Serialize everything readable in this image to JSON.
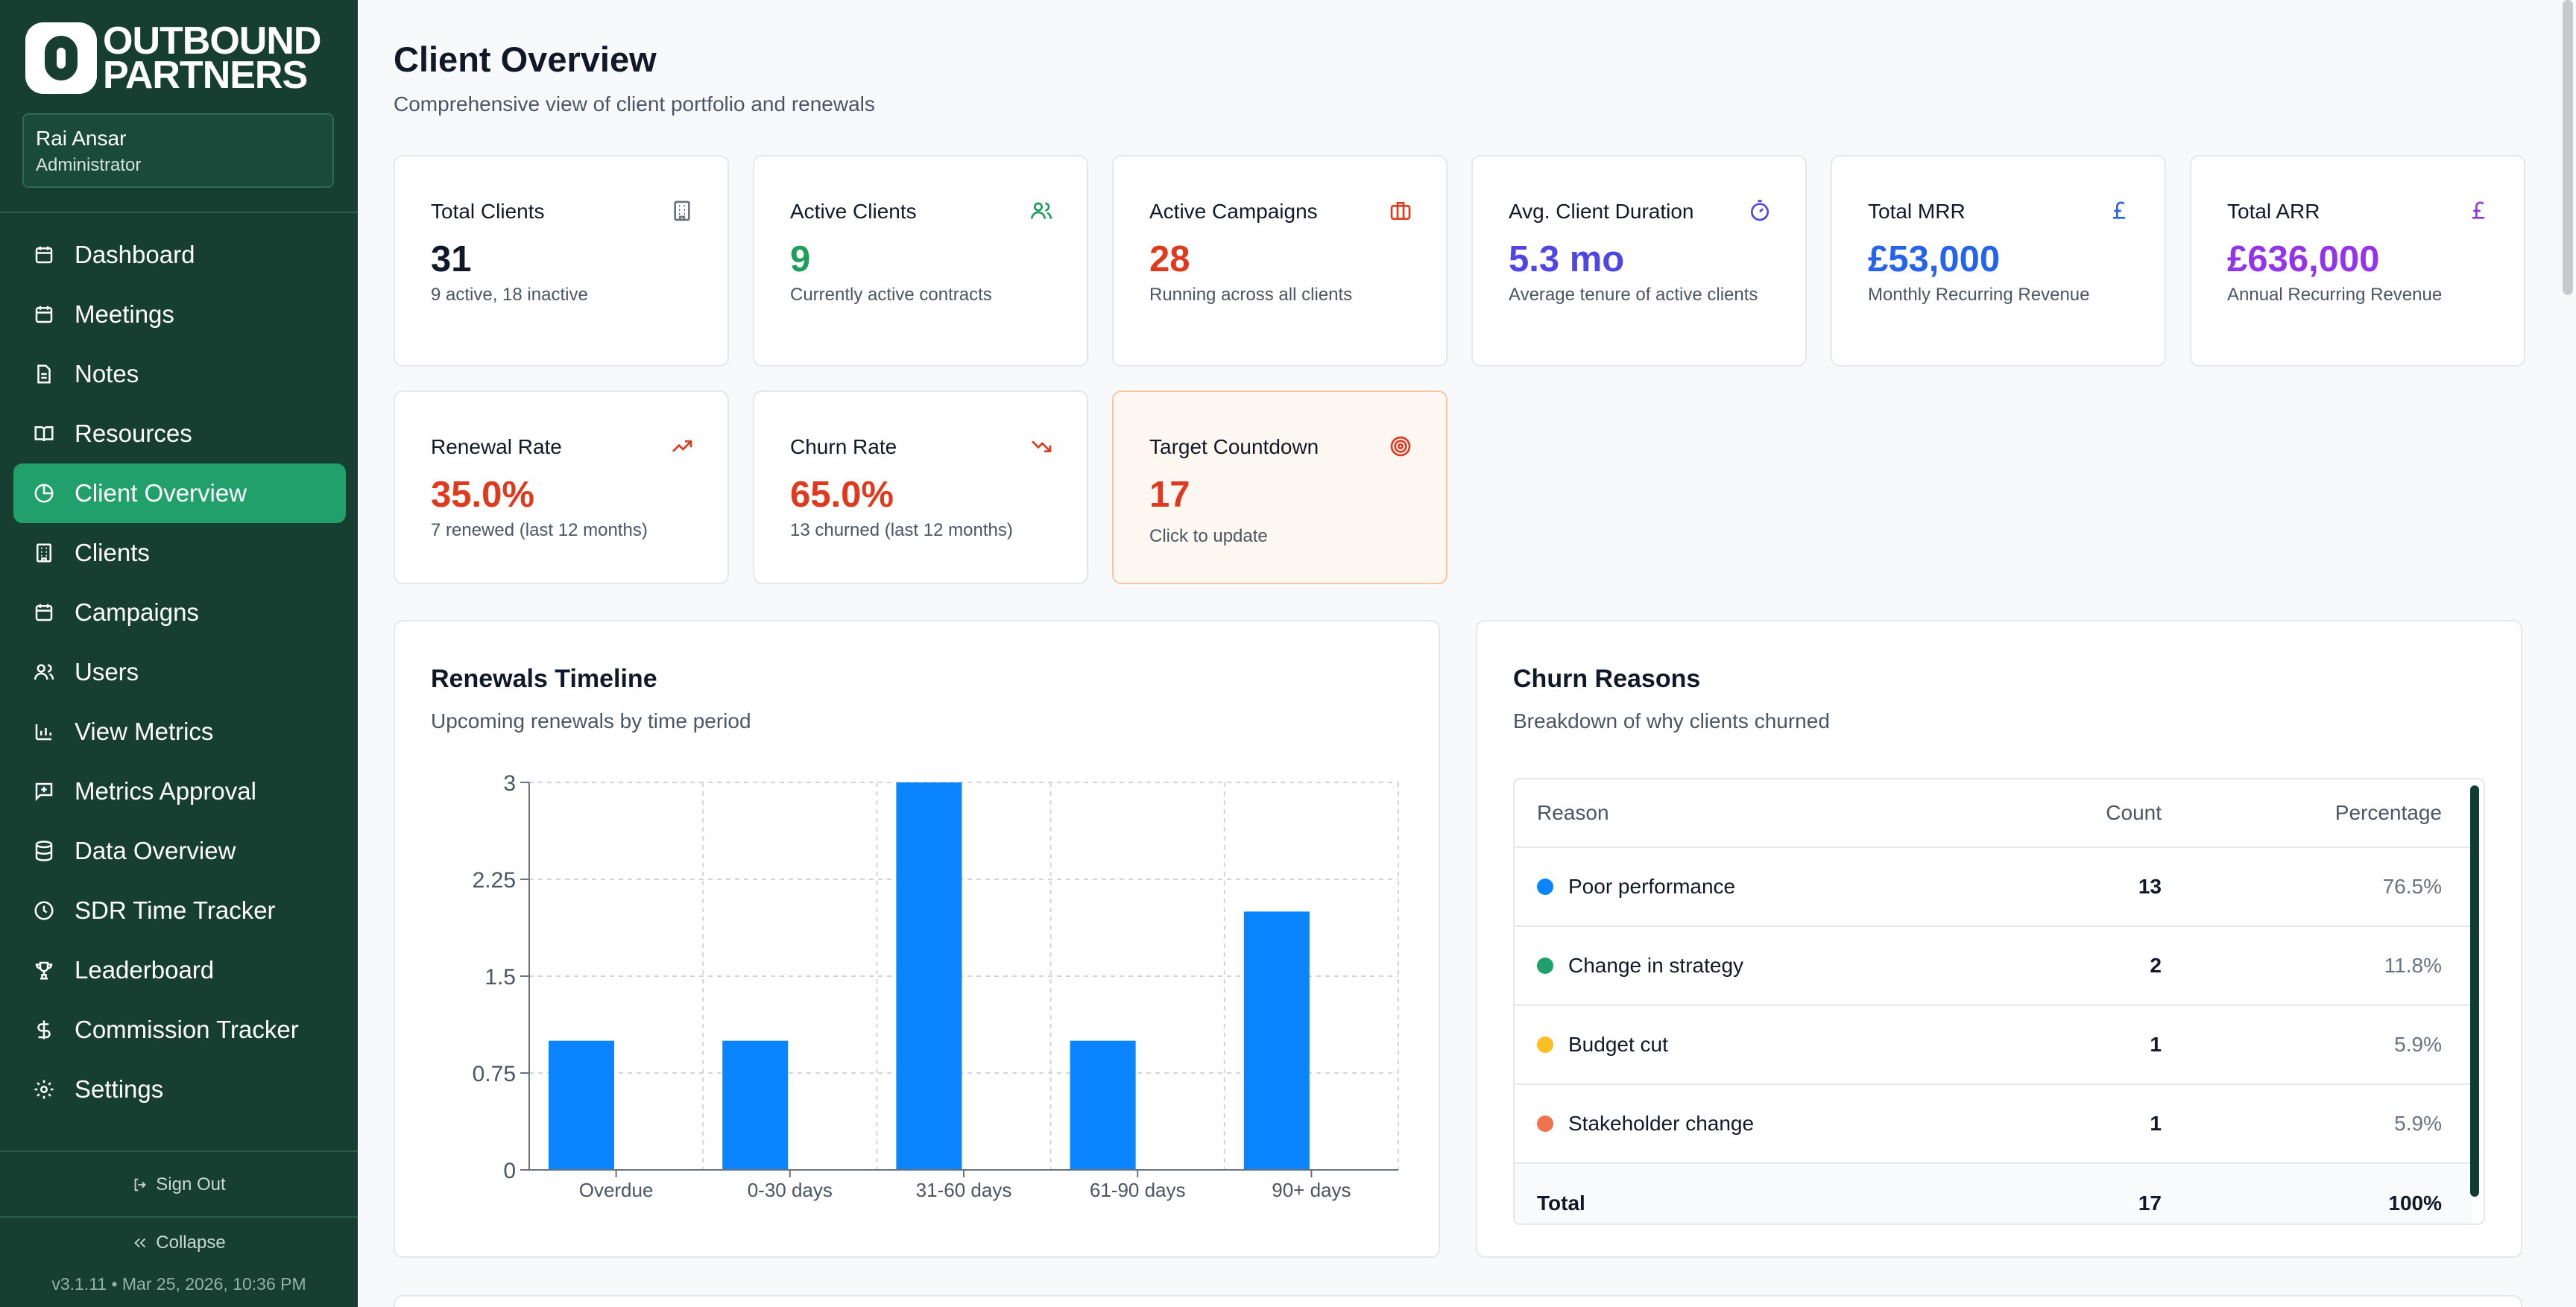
{
  "brand": {
    "line1": "OUTBOUND",
    "line2": "PARTNERS"
  },
  "user": {
    "name": "Rai Ansar",
    "role": "Administrator"
  },
  "nav": [
    {
      "label": "Dashboard",
      "icon": "calendar-icon",
      "active": false
    },
    {
      "label": "Meetings",
      "icon": "calendar-icon",
      "active": false
    },
    {
      "label": "Notes",
      "icon": "file-text-icon",
      "active": false
    },
    {
      "label": "Resources",
      "icon": "book-open-icon",
      "active": false
    },
    {
      "label": "Client Overview",
      "icon": "pie-chart-icon",
      "active": true
    },
    {
      "label": "Clients",
      "icon": "building-icon",
      "active": false
    },
    {
      "label": "Campaigns",
      "icon": "calendar-icon",
      "active": false
    },
    {
      "label": "Users",
      "icon": "users-icon",
      "active": false
    },
    {
      "label": "View Metrics",
      "icon": "bar-chart-icon",
      "active": false
    },
    {
      "label": "Metrics Approval",
      "icon": "message-plus-icon",
      "active": false
    },
    {
      "label": "Data Overview",
      "icon": "database-icon",
      "active": false
    },
    {
      "label": "SDR Time Tracker",
      "icon": "clock-icon",
      "active": false
    },
    {
      "label": "Leaderboard",
      "icon": "trophy-icon",
      "active": false
    },
    {
      "label": "Commission Tracker",
      "icon": "dollar-icon",
      "active": false
    },
    {
      "label": "Settings",
      "icon": "gear-icon",
      "active": false
    }
  ],
  "sidebar_footer": {
    "sign_out": "Sign Out",
    "collapse": "Collapse",
    "version": "v3.1.11 • Mar 25, 2026, 10:36 PM"
  },
  "header": {
    "title": "Client Overview",
    "subtitle": "Comprehensive view of client portfolio and renewals"
  },
  "stats": [
    {
      "label": "Total Clients",
      "value": "31",
      "sub": "9 active, 18 inactive",
      "icon": "building-icon",
      "color": "#111827",
      "icon_color": "#6b7280"
    },
    {
      "label": "Active Clients",
      "value": "9",
      "sub": "Currently active contracts",
      "icon": "users-icon",
      "color": "#1f9d5a",
      "icon_color": "#1f9d5a"
    },
    {
      "label": "Active Campaigns",
      "value": "28",
      "sub": "Running across all clients",
      "icon": "briefcase-icon",
      "color": "#e03a1e",
      "icon_color": "#e03a1e"
    },
    {
      "label": "Avg. Client Duration",
      "value": "5.3 mo",
      "sub": "Average tenure of active clients",
      "icon": "timer-icon",
      "color": "#4f46e5",
      "icon_color": "#4f46e5"
    },
    {
      "label": "Total MRR",
      "value": "£53,000",
      "sub": "Monthly Recurring Revenue",
      "icon": "pound-icon",
      "color": "#2563eb",
      "icon_color": "#2563eb"
    },
    {
      "label": "Total ARR",
      "value": "£636,000",
      "sub": "Annual Recurring Revenue",
      "icon": "pound-icon",
      "color": "#9333ea",
      "icon_color": "#9333ea"
    }
  ],
  "stats2": [
    {
      "label": "Renewal Rate",
      "value": "35.0%",
      "sub": "7 renewed (last 12 months)",
      "icon": "trending-up-icon",
      "color": "#e03a1e",
      "icon_color": "#e03a1e"
    },
    {
      "label": "Churn Rate",
      "value": "65.0%",
      "sub": "13 churned (last 12 months)",
      "icon": "trending-down-icon",
      "color": "#e03a1e",
      "icon_color": "#e03a1e"
    },
    {
      "label": "Target Countdown",
      "value": "17",
      "sub": "Click to update",
      "icon": "target-icon",
      "color": "#e03a1e",
      "icon_color": "#e03a1e"
    }
  ],
  "renewals": {
    "title": "Renewals Timeline",
    "subtitle": "Upcoming renewals by time period"
  },
  "chart_data": {
    "type": "bar",
    "title": "Renewals Timeline",
    "categories": [
      "Overdue",
      "0-30 days",
      "31-60 days",
      "61-90 days",
      "90+ days"
    ],
    "values": [
      1,
      1,
      3,
      1,
      2
    ],
    "ylim": [
      0,
      3
    ],
    "yticks": [
      "0",
      "0.75",
      "1.5",
      "2.25",
      "3"
    ],
    "grid": true,
    "bar_color": "#0a84ff"
  },
  "churn": {
    "title": "Churn Reasons",
    "subtitle": "Breakdown of why clients churned",
    "columns": {
      "reason": "Reason",
      "count": "Count",
      "percentage": "Percentage"
    },
    "rows": [
      {
        "reason": "Poor performance",
        "count": "13",
        "percentage": "76.5%",
        "color": "#0a84ff"
      },
      {
        "reason": "Change in strategy",
        "count": "2",
        "percentage": "11.8%",
        "color": "#22a06b"
      },
      {
        "reason": "Budget cut",
        "count": "1",
        "percentage": "5.9%",
        "color": "#fbbf24"
      },
      {
        "reason": "Stakeholder change",
        "count": "1",
        "percentage": "5.9%",
        "color": "#f07350"
      }
    ],
    "total": {
      "label": "Total",
      "count": "17",
      "percentage": "100%"
    }
  }
}
